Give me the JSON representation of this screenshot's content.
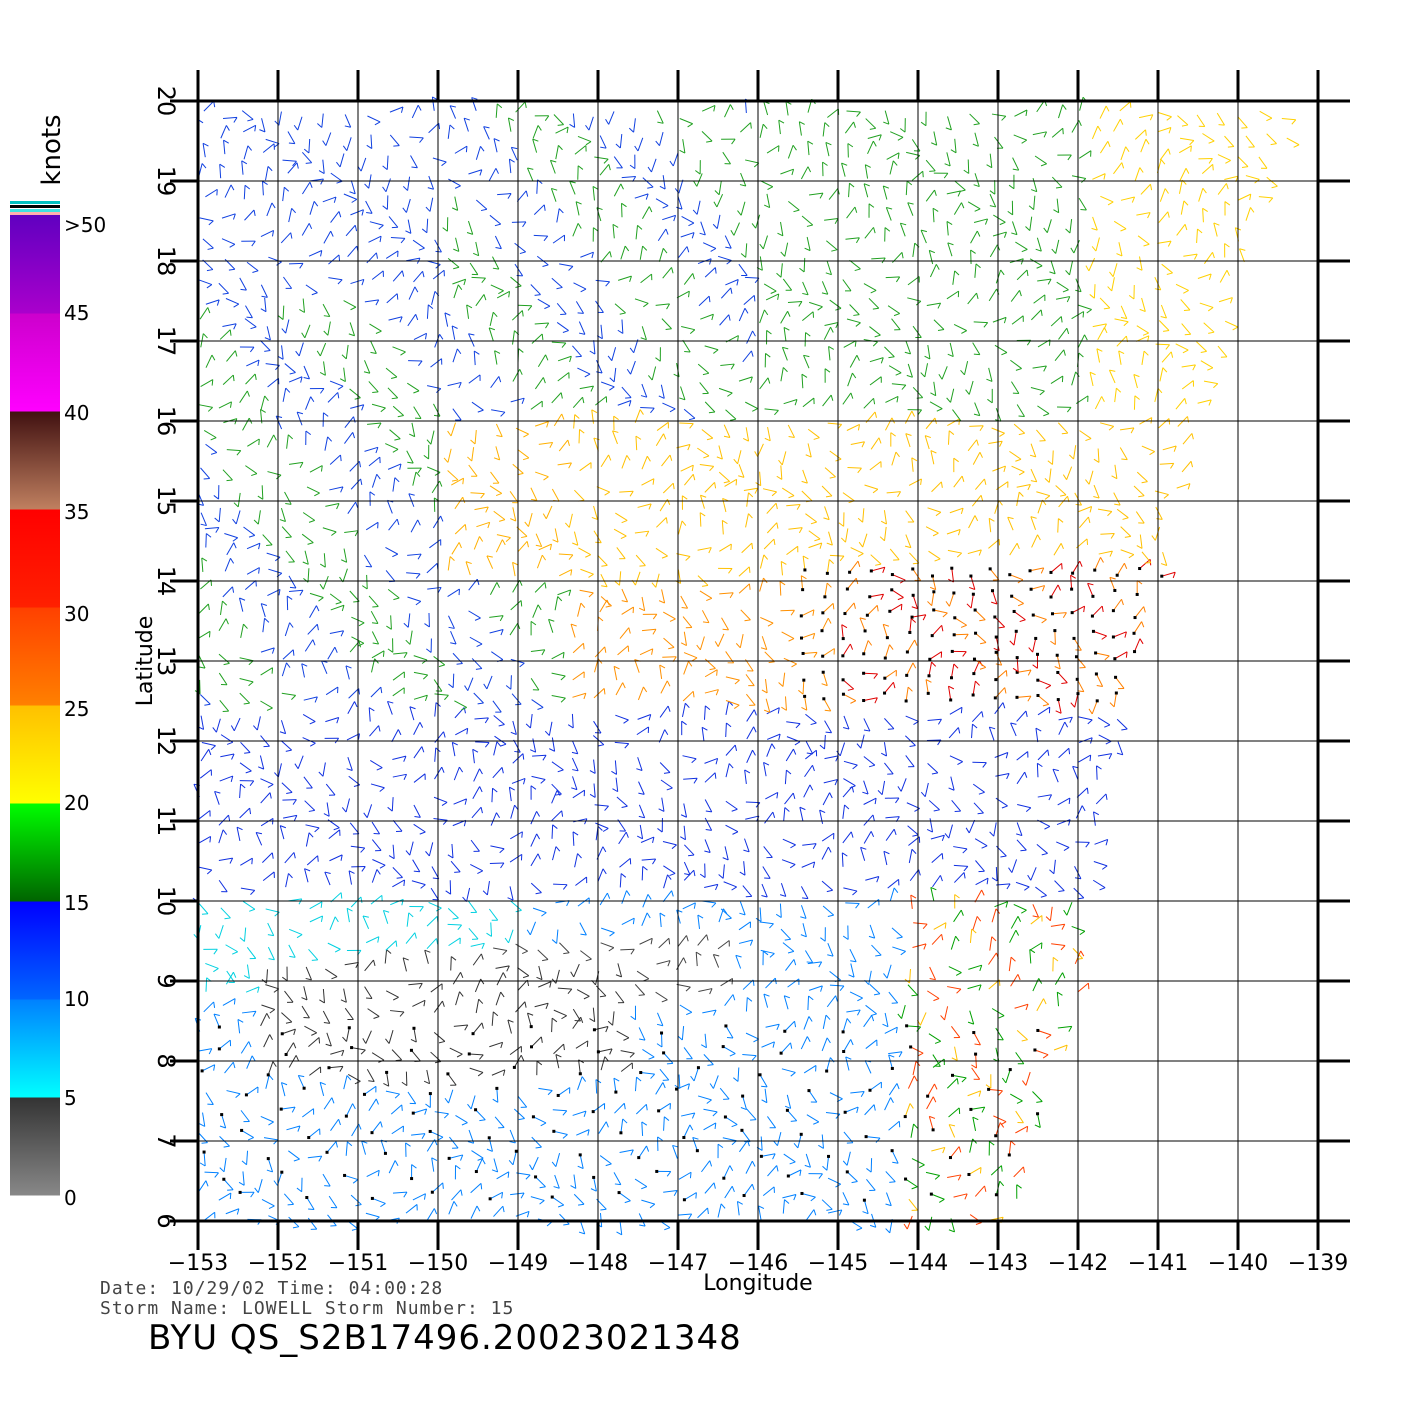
{
  "map": {
    "lon_ticks": [
      "-153",
      "-152",
      "-151",
      "-150",
      "-149",
      "-148",
      "-147",
      "-146",
      "-145",
      "-144",
      "-143",
      "-142",
      "-141",
      "-140",
      "-139"
    ],
    "lat_ticks": [
      "6",
      "7",
      "8",
      "9",
      "10",
      "11",
      "12",
      "13",
      "14",
      "15",
      "16",
      "17",
      "18",
      "19",
      "20"
    ],
    "x_axis_title": "Longitude",
    "y_axis_title": "Latitude",
    "lon_range": [
      -153,
      -139
    ],
    "lat_range": [
      6,
      20
    ],
    "field": "scatterometer wind barbs",
    "grid": true
  },
  "colorbar": {
    "unit": "knots",
    "labels": [
      ">50",
      "45",
      "40",
      "35",
      "30",
      "25",
      "20",
      "15",
      "10",
      "5",
      "0"
    ],
    "segments": [
      {
        "from": 0,
        "to": 5,
        "colors": [
          "#888888",
          "#333333"
        ]
      },
      {
        "from": 5,
        "to": 10,
        "colors": [
          "#00ffff",
          "#0080ff"
        ]
      },
      {
        "from": 10,
        "to": 15,
        "colors": [
          "#0066ff",
          "#0000ff"
        ]
      },
      {
        "from": 15,
        "to": 20,
        "colors": [
          "#006400",
          "#00ff00"
        ]
      },
      {
        "from": 20,
        "to": 25,
        "colors": [
          "#ffff00",
          "#ffc000"
        ]
      },
      {
        "from": 25,
        "to": 30,
        "colors": [
          "#ff8000",
          "#ff4000"
        ]
      },
      {
        "from": 30,
        "to": 35,
        "colors": [
          "#ff2000",
          "#ff0000"
        ]
      },
      {
        "from": 35,
        "to": 40,
        "colors": [
          "#c08060",
          "#401010"
        ]
      },
      {
        "from": 40,
        "to": 45,
        "colors": [
          "#ff00ff",
          "#cc00cc"
        ]
      },
      {
        "from": 45,
        "to": 50,
        "colors": [
          "#aa00cc",
          "#6000c0"
        ]
      }
    ]
  },
  "info": {
    "date_line": "Date: 10/29/02   Time: 04:00:28",
    "storm_line": "Storm  Name: LOWELL   Storm  Number: 15",
    "product_id": "BYU  QS_S2B17496.20023021348"
  }
}
